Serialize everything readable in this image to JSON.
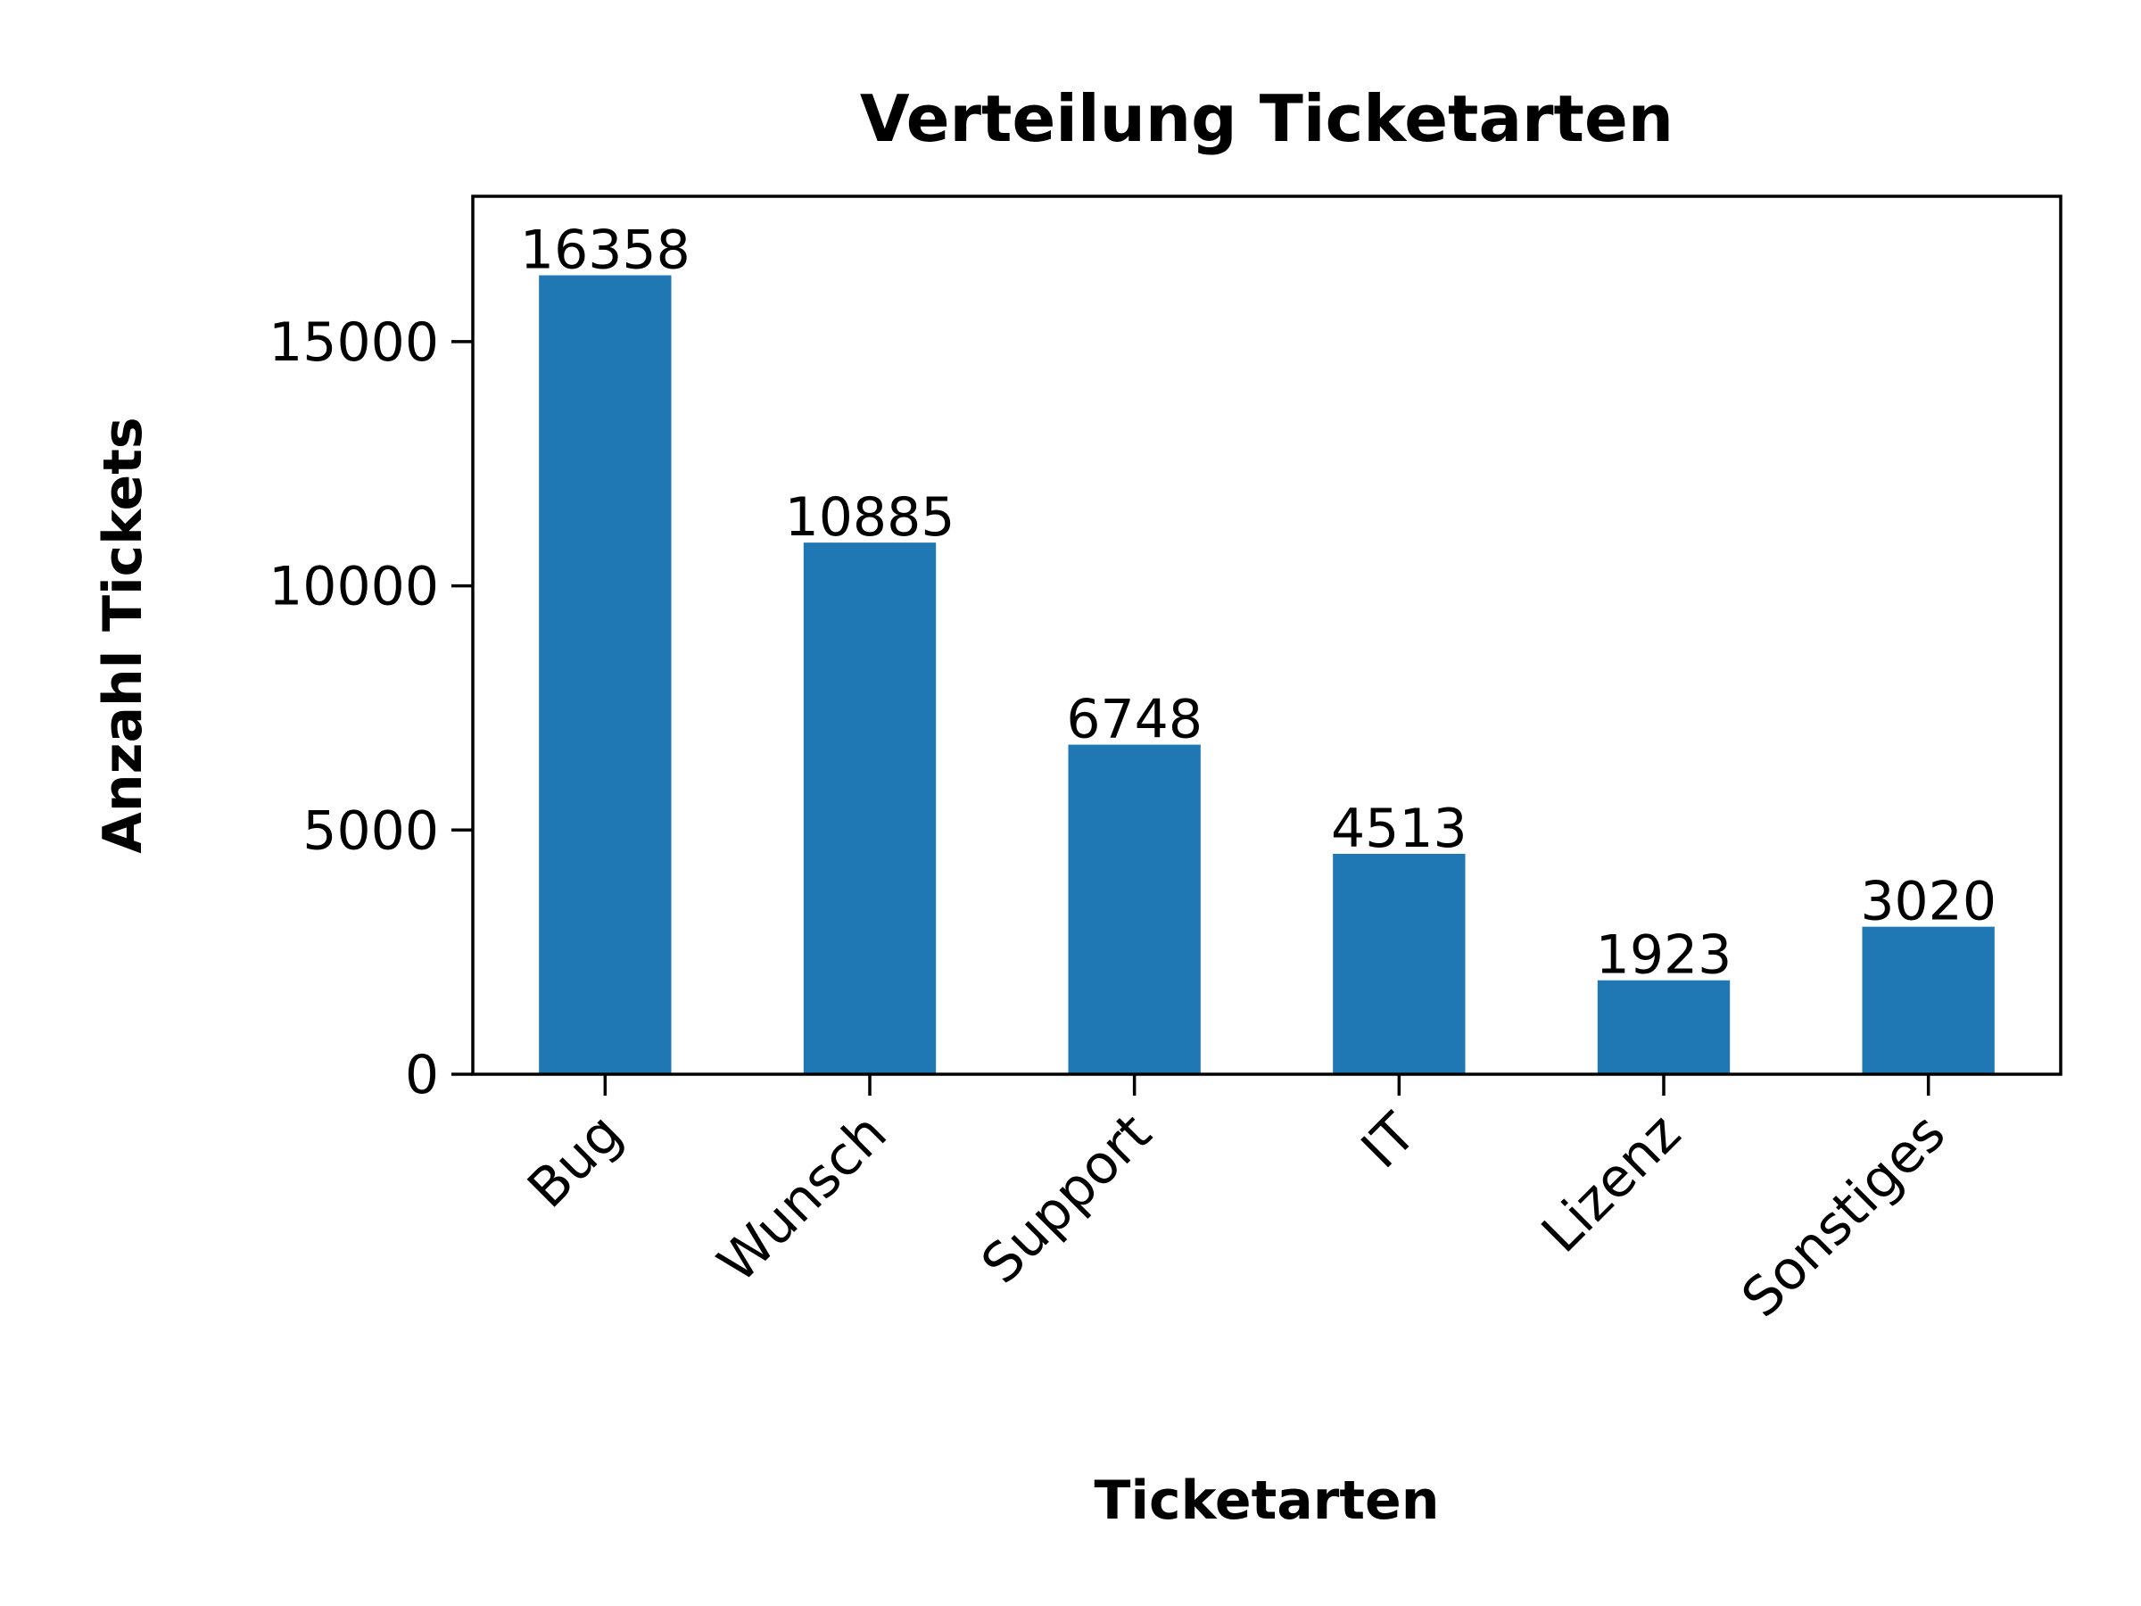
{
  "chart_data": {
    "type": "bar",
    "title": "Verteilung Ticketarten",
    "xlabel": "Ticketarten",
    "ylabel": "Anzahl Tickets",
    "categories": [
      "Bug",
      "Wunsch",
      "Support",
      "IT",
      "Lizenz",
      "Sonstiges"
    ],
    "values": [
      16358,
      10885,
      6748,
      4513,
      1923,
      3020
    ],
    "data_labels": [
      "16358",
      "10885",
      "6748",
      "4513",
      "1923",
      "3020"
    ],
    "yticks": [
      0,
      5000,
      10000,
      15000
    ],
    "ytick_labels": [
      "0",
      "5000",
      "10000",
      "15000"
    ],
    "ylim": [
      0,
      17976
    ],
    "grid": false,
    "legend": "none",
    "x_tick_rotation_deg": 45,
    "bar_color": "#1f77b4"
  }
}
